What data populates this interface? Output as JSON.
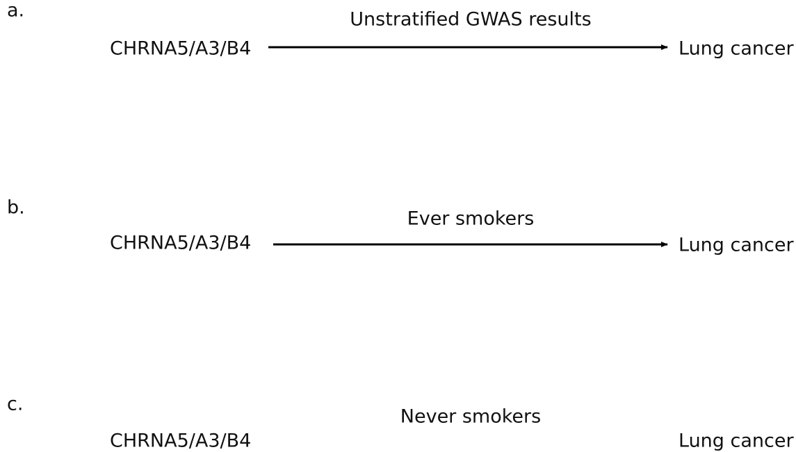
{
  "panels": [
    {
      "label": "a.",
      "source": "CHRNA5/A3/B4",
      "edge_label": "Unstratified GWAS results",
      "target": "Lung cancer"
    },
    {
      "label": "b.",
      "source": "CHRNA5/A3/B4",
      "edge_label": "Ever smokers",
      "target": "Lung cancer"
    },
    {
      "label": "c.",
      "source": "CHRNA5/A3/B4",
      "edge_label": "Never smokers",
      "target": "Lung cancer"
    }
  ]
}
